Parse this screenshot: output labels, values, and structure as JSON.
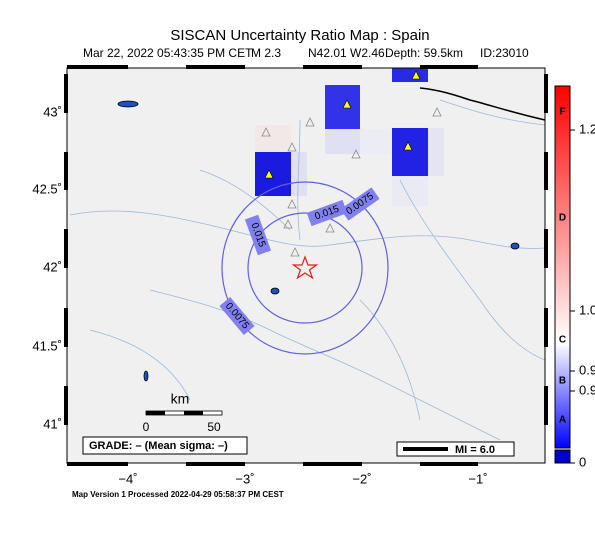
{
  "header": {
    "title": "SISCAN Uncertainty Ratio Map : Spain",
    "info": [
      "Mar 22, 2022 05:43:35 PM CET",
      "M 2.3",
      "N42.01 W2.46",
      "Depth: 59.5km",
      "ID:23010"
    ]
  },
  "map": {
    "lat_labels": [
      "43˚",
      "42.5˚",
      "42˚",
      "41.5˚",
      "41˚"
    ],
    "lon_labels": [
      "−4˚",
      "−3˚",
      "−2˚",
      "−1˚"
    ],
    "contour_labels": [
      "0.015",
      "0.015",
      "0.0075",
      "0.0075"
    ]
  },
  "scale": {
    "unit": "km",
    "ticks": [
      "0",
      "50"
    ]
  },
  "grade": "GRADE: – (Mean sigma: –)",
  "legend": "MI = 6.0",
  "colorbar": {
    "grades": [
      "F",
      "D",
      "C",
      "B",
      "A"
    ],
    "labels": [
      "1.2",
      "1.0",
      "0.9",
      "0.9",
      "0"
    ]
  },
  "footer": "Map Version 1 Processed 2022-04-29 05:58:37 PM CEST"
}
